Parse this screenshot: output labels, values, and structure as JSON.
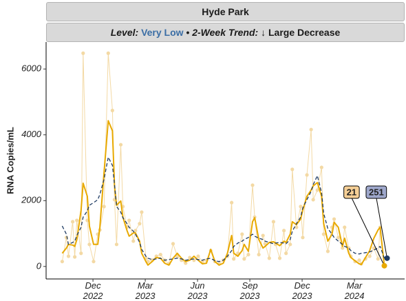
{
  "chart_data": {
    "type": "line",
    "title": "Hyde Park",
    "level_label": "Level:",
    "level": "Very Low",
    "level_color": "#3b6ea5",
    "separator": "•",
    "trend_label": "2-Week Trend:",
    "trend": "↓ Large Decrease",
    "ylabel": "RNA Copies/mL",
    "ylim": [
      -380,
      6820
    ],
    "yticks": [
      0,
      2000,
      4000,
      6000
    ],
    "xlim": [
      2022.693,
      2024.407
    ],
    "xticks": [
      {
        "value": 2022.917,
        "label": "Dec 2022"
      },
      {
        "value": 2023.167,
        "label": "Mar 2023"
      },
      {
        "value": 2023.417,
        "label": "Jun 2023"
      },
      {
        "value": 2023.667,
        "label": "Sep 2023"
      },
      {
        "value": 2023.917,
        "label": "Dec 2023"
      },
      {
        "value": 2024.167,
        "label": "Mar 2024"
      }
    ],
    "grid": false,
    "x": [
      2022.77,
      2022.79,
      2022.8,
      2022.82,
      2022.83,
      2022.84,
      2022.86,
      2022.87,
      2022.89,
      2022.9,
      2022.92,
      2022.94,
      2022.95,
      2022.97,
      2022.99,
      2023.01,
      2023.02,
      2023.03,
      2023.05,
      2023.06,
      2023.08,
      2023.09,
      2023.11,
      2023.12,
      2023.14,
      2023.15,
      2023.17,
      2023.18,
      2023.2,
      2023.22,
      2023.24,
      2023.26,
      2023.28,
      2023.3,
      2023.32,
      2023.34,
      2023.36,
      2023.38,
      2023.4,
      2023.42,
      2023.44,
      2023.46,
      2023.48,
      2023.5,
      2023.52,
      2023.54,
      2023.56,
      2023.58,
      2023.59,
      2023.61,
      2023.63,
      2023.64,
      2023.66,
      2023.68,
      2023.69,
      2023.71,
      2023.73,
      2023.74,
      2023.76,
      2023.78,
      2023.79,
      2023.81,
      2023.83,
      2023.84,
      2023.86,
      2023.87,
      2023.89,
      2023.91,
      2023.92,
      2023.94,
      2023.96,
      2023.97,
      2023.99,
      2024.01,
      2024.02,
      2024.04,
      2024.06,
      2024.07,
      2024.09,
      2024.11,
      2024.12,
      2024.14,
      2024.15,
      2024.17,
      2024.19,
      2024.2,
      2024.22,
      2024.24,
      2024.26,
      2024.28,
      2024.29,
      2024.31
    ],
    "series": [
      {
        "color": "#f3d9a4",
        "width": 1,
        "markers": true,
        "values": [
          150,
          880,
          310,
          1360,
          290,
          1400,
          400,
          6480,
          1400,
          670,
          150,
          980,
          1110,
          1820,
          6480,
          4740,
          2030,
          670,
          3700,
          1820,
          1190,
          1400,
          770,
          1090,
          1300,
          1650,
          250,
          150,
          190,
          310,
          360,
          190,
          80,
          690,
          310,
          190,
          100,
          270,
          190,
          310,
          150,
          190,
          480,
          150,
          80,
          190,
          310,
          1940,
          230,
          400,
          980,
          230,
          360,
          2470,
          1500,
          360,
          940,
          690,
          250,
          1360,
          670,
          250,
          1090,
          400,
          670,
          2950,
          1190,
          1820,
          880,
          2780,
          4160,
          2030,
          2320,
          3010,
          980,
          460,
          1190,
          1440,
          880,
          560,
          1190,
          560,
          310,
          150,
          190,
          80,
          230,
          310,
          560,
          230,
          1190,
          21
        ]
      },
      {
        "color": "#e8a900",
        "width": 2,
        "end_point": true,
        "label_color": "#f5cf96",
        "values": [
          400,
          560,
          670,
          650,
          610,
          820,
          1710,
          2530,
          2130,
          1230,
          670,
          670,
          1190,
          2860,
          4430,
          4120,
          2450,
          1860,
          1990,
          1500,
          1090,
          920,
          1020,
          1020,
          770,
          400,
          150,
          40,
          150,
          270,
          250,
          100,
          40,
          250,
          400,
          250,
          150,
          190,
          310,
          190,
          80,
          100,
          520,
          150,
          40,
          100,
          400,
          940,
          400,
          310,
          480,
          670,
          460,
          1360,
          1480,
          820,
          560,
          610,
          730,
          750,
          710,
          630,
          770,
          730,
          980,
          1360,
          1270,
          1440,
          1710,
          2130,
          2320,
          2450,
          2550,
          2130,
          1300,
          770,
          980,
          1340,
          1190,
          610,
          860,
          400,
          270,
          170,
          80,
          60,
          270,
          480,
          860,
          1110,
          1190,
          21
        ]
      },
      {
        "color": "#1f3b63",
        "width": 1.3,
        "dashed": true,
        "end_point": true,
        "label_color": "#9fa8cc",
        "values": [
          1230,
          980,
          670,
          730,
          770,
          940,
          1190,
          1500,
          1690,
          1860,
          1940,
          2030,
          2190,
          2650,
          3320,
          3070,
          2490,
          1820,
          1650,
          1480,
          1300,
          1190,
          1070,
          980,
          730,
          520,
          310,
          250,
          210,
          230,
          250,
          190,
          210,
          230,
          250,
          230,
          190,
          210,
          230,
          210,
          190,
          230,
          250,
          170,
          150,
          190,
          310,
          480,
          610,
          710,
          770,
          820,
          880,
          980,
          920,
          860,
          820,
          770,
          730,
          690,
          710,
          730,
          710,
          690,
          820,
          1070,
          1300,
          1500,
          1780,
          2030,
          2280,
          2490,
          2760,
          2240,
          1610,
          1150,
          980,
          880,
          770,
          670,
          610,
          560,
          480,
          400,
          380,
          400,
          420,
          440,
          500,
          560,
          610,
          251
        ]
      }
    ]
  }
}
